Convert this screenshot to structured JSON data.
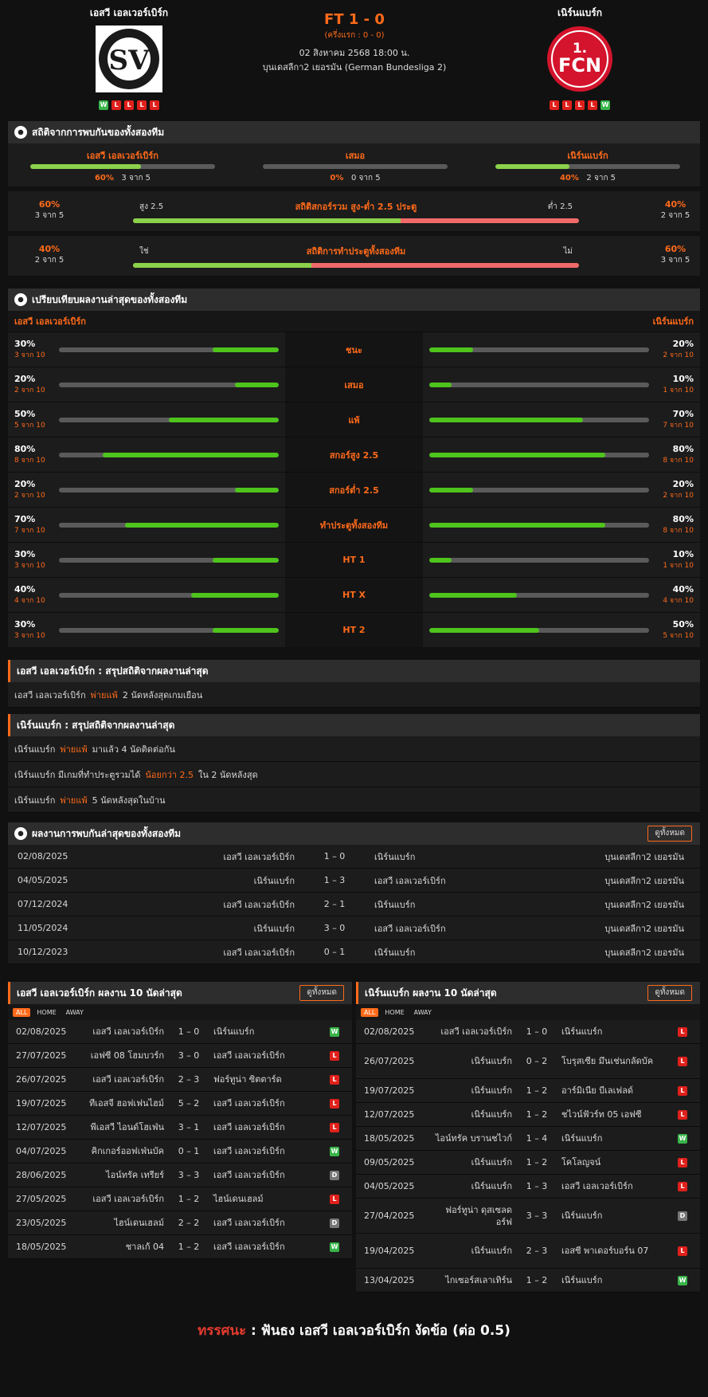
{
  "header": {
    "home_name": "เอสวี เอลเวอร์เบิร์ก",
    "away_name": "เนิร์นแบร์ก",
    "score": "FT 1 - 0",
    "half_time": "(ครึ่งแรก : 0 - 0)",
    "datetime": "02 สิงหาคม 2568 18:00 น.",
    "league": "บุนเดสลีกา2 เยอรมัน (German Bundesliga 2)",
    "home_form": [
      "W",
      "L",
      "L",
      "L",
      "L"
    ],
    "away_form": [
      "L",
      "L",
      "L",
      "L",
      "W"
    ],
    "home_logo_text": "SPORTVEREINIGUNG 07 E.V. ELVERSBERG",
    "away_logo_text": "1.FCN"
  },
  "h2h_stats": {
    "title": "สถิติจากการพบกันของทั้งสองทีม",
    "items": [
      {
        "label": "เอสวี เอลเวอร์เบิร์ก",
        "pct": "60%",
        "count": "3 จาก 5",
        "value": 60
      },
      {
        "label": "เสมอ",
        "pct": "0%",
        "count": "0 จาก 5",
        "value": 0
      },
      {
        "label": "เนิร์นแบร์ก",
        "pct": "40%",
        "count": "2 จาก 5",
        "value": 40
      }
    ],
    "ou": {
      "title": "สถิติสกอร์รวม สูง-ต่ำ 2.5 ประตู",
      "left_label": "สูง 2.5",
      "right_label": "ต่ำ 2.5",
      "left_pct": "60%",
      "left_count": "3 จาก 5",
      "right_pct": "40%",
      "right_count": "2 จาก 5",
      "value": 60
    },
    "btts": {
      "title": "สถิติการทำประตูทั้งสองทีม",
      "left_label": "ใช่",
      "right_label": "ไม่",
      "left_pct": "40%",
      "left_count": "2 จาก 5",
      "right_pct": "60%",
      "right_count": "3 จาก 5",
      "value": 40
    }
  },
  "comparison": {
    "title": "เปรียบเทียบผลงานล่าสุดของทั้งสองทีม",
    "home_label": "เอสวี เอลเวอร์เบิร์ก",
    "away_label": "เนิร์นแบร์ก",
    "rows": [
      {
        "label": "ชนะ",
        "home_pct": "30%",
        "home_count": "3 จาก 10",
        "home_value": 30,
        "away_pct": "20%",
        "away_count": "2 จาก 10",
        "away_value": 20
      },
      {
        "label": "เสมอ",
        "home_pct": "20%",
        "home_count": "2 จาก 10",
        "home_value": 20,
        "away_pct": "10%",
        "away_count": "1 จาก 10",
        "away_value": 10
      },
      {
        "label": "แพ้",
        "home_pct": "50%",
        "home_count": "5 จาก 10",
        "home_value": 50,
        "away_pct": "70%",
        "away_count": "7 จาก 10",
        "away_value": 70
      },
      {
        "label": "สกอร์สูง 2.5",
        "home_pct": "80%",
        "home_count": "8 จาก 10",
        "home_value": 80,
        "away_pct": "80%",
        "away_count": "8 จาก 10",
        "away_value": 80
      },
      {
        "label": "สกอร์ต่ำ 2.5",
        "home_pct": "20%",
        "home_count": "2 จาก 10",
        "home_value": 20,
        "away_pct": "20%",
        "away_count": "2 จาก 10",
        "away_value": 20
      },
      {
        "label": "ทำประตูทั้งสองทีม",
        "home_pct": "70%",
        "home_count": "7 จาก 10",
        "home_value": 70,
        "away_pct": "80%",
        "away_count": "8 จาก 10",
        "away_value": 80
      },
      {
        "label": "HT 1",
        "home_pct": "30%",
        "home_count": "3 จาก 10",
        "home_value": 30,
        "away_pct": "10%",
        "away_count": "1 จาก 10",
        "away_value": 10
      },
      {
        "label": "HT X",
        "home_pct": "40%",
        "home_count": "4 จาก 10",
        "home_value": 40,
        "away_pct": "40%",
        "away_count": "4 จาก 10",
        "away_value": 40
      },
      {
        "label": "HT 2",
        "home_pct": "30%",
        "home_count": "3 จาก 10",
        "home_value": 30,
        "away_pct": "50%",
        "away_count": "5 จาก 10",
        "away_value": 50
      }
    ]
  },
  "summary_home": {
    "title": "เอสวี เอลเวอร์เบิร์ก : สรุปสถิติจากผลงานล่าสุด",
    "rows": [
      {
        "pre": "เอสวี เอลเวอร์เบิร์ก",
        "hl": "พ่ายแพ้",
        "post": "2  นัดหลังสุดเกมเยือน"
      }
    ]
  },
  "summary_away": {
    "title": "เนิร์นแบร์ก : สรุปสถิติจากผลงานล่าสุด",
    "rows": [
      {
        "pre": "เนิร์นแบร์ก",
        "hl": "พ่ายแพ้",
        "post": "มาแล้ว 4 นัดติดต่อกัน"
      },
      {
        "pre": "เนิร์นแบร์ก  มีเกมที่ทำประตูรวมได้",
        "hl": "น้อยกว่า  2.5",
        "post": "ใน 2 นัดหลังสุด"
      },
      {
        "pre": "เนิร์นแบร์ก",
        "hl": "พ่ายแพ้",
        "post": "5  นัดหลังสุดในบ้าน"
      }
    ]
  },
  "h2h_results": {
    "title": "ผลงานการพบกันล่าสุดของทั้งสองทีม",
    "all_label": "ดูทั้งหมด",
    "rows": [
      {
        "date": "02/08/2025",
        "home": "เอสวี เอลเวอร์เบิร์ก",
        "score": "1 – 0",
        "away": "เนิร์นแบร์ก",
        "league": "บุนเดสลีกา2 เยอรมัน"
      },
      {
        "date": "04/05/2025",
        "home": "เนิร์นแบร์ก",
        "score": "1 – 3",
        "away": "เอสวี เอลเวอร์เบิร์ก",
        "league": "บุนเดสลีกา2 เยอรมัน"
      },
      {
        "date": "07/12/2024",
        "home": "เอสวี เอลเวอร์เบิร์ก",
        "score": "2 – 1",
        "away": "เนิร์นแบร์ก",
        "league": "บุนเดสลีกา2 เยอรมัน"
      },
      {
        "date": "11/05/2024",
        "home": "เนิร์นแบร์ก",
        "score": "3 – 0",
        "away": "เอสวี เอลเวอร์เบิร์ก",
        "league": "บุนเดสลีกา2 เยอรมัน"
      },
      {
        "date": "10/12/2023",
        "home": "เอสวี เอลเวอร์เบิร์ก",
        "score": "0 – 1",
        "away": "เนิร์นแบร์ก",
        "league": "บุนเดสลีกา2 เยอรมัน"
      }
    ]
  },
  "home_last10": {
    "title": "เอสวี เอลเวอร์เบิร์ก ผลงาน 10 นัดล่าสุด",
    "all_label": "ดูทั้งหมด",
    "filters": [
      "ALL",
      "HOME",
      "AWAY"
    ],
    "rows": [
      {
        "date": "02/08/2025",
        "home": "เอสวี เอลเวอร์เบิร์ก",
        "score": "1 – 0",
        "away": "เนิร์นแบร์ก",
        "res": "W"
      },
      {
        "date": "27/07/2025",
        "home": "เอฟซี 08 โฮมบวร์ก",
        "score": "3 – 0",
        "away": "เอสวี เอลเวอร์เบิร์ก",
        "res": "L"
      },
      {
        "date": "26/07/2025",
        "home": "เอสวี เอลเวอร์เบิร์ก",
        "score": "2 – 3",
        "away": "ฟอร์ทูน่า ซิตตาร์ด",
        "res": "L"
      },
      {
        "date": "19/07/2025",
        "home": "ทีเอสจี ฮอฟเฟนไฮม์",
        "score": "5 – 2",
        "away": "เอสวี เอลเวอร์เบิร์ก",
        "res": "L"
      },
      {
        "date": "12/07/2025",
        "home": "พีเอสวี ไอนด์โฮเฟ่น",
        "score": "3 – 1",
        "away": "เอสวี เอลเวอร์เบิร์ก",
        "res": "L"
      },
      {
        "date": "04/07/2025",
        "home": "คิกเกอร์ออฟเฟ่นบัค",
        "score": "0 – 1",
        "away": "เอสวี เอลเวอร์เบิร์ก",
        "res": "W"
      },
      {
        "date": "28/06/2025",
        "home": "ไอน์ทรัค เทรียร์",
        "score": "3 – 3",
        "away": "เอสวี เอลเวอร์เบิร์ก",
        "res": "D"
      },
      {
        "date": "27/05/2025",
        "home": "เอสวี เอลเวอร์เบิร์ก",
        "score": "1 – 2",
        "away": "ไฮน์เดนเฮลม์",
        "res": "L"
      },
      {
        "date": "23/05/2025",
        "home": "ไฮน์เดนเฮลม์",
        "score": "2 – 2",
        "away": "เอสวี เอลเวอร์เบิร์ก",
        "res": "D"
      },
      {
        "date": "18/05/2025",
        "home": "ชาลเก้ 04",
        "score": "1 – 2",
        "away": "เอสวี เอลเวอร์เบิร์ก",
        "res": "W"
      }
    ]
  },
  "away_last10": {
    "title": "เนิร์นแบร์ก ผลงาน 10 นัดล่าสุด",
    "all_label": "ดูทั้งหมด",
    "filters": [
      "ALL",
      "HOME",
      "AWAY"
    ],
    "rows": [
      {
        "date": "02/08/2025",
        "home": "เอสวี เอลเวอร์เบิร์ก",
        "score": "1 – 0",
        "away": "เนิร์นแบร์ก",
        "res": "L"
      },
      {
        "date": "26/07/2025",
        "home": "เนิร์นแบร์ก",
        "score": "0 – 2",
        "away": "โบรุสเซีย มึนเช่นกลัดบัค",
        "res": "L",
        "tall": true
      },
      {
        "date": "19/07/2025",
        "home": "เนิร์นแบร์ก",
        "score": "1 – 2",
        "away": "อาร์มิเนีย บีเลเฟลด์",
        "res": "L"
      },
      {
        "date": "12/07/2025",
        "home": "เนิร์นแบร์ก",
        "score": "1 – 2",
        "away": "ชไวน์ฟัวร์ท 05 เอฟซี",
        "res": "L"
      },
      {
        "date": "18/05/2025",
        "home": "ไอน์ทรัค บรานชไวก์",
        "score": "1 – 4",
        "away": "เนิร์นแบร์ก",
        "res": "W"
      },
      {
        "date": "09/05/2025",
        "home": "เนิร์นแบร์ก",
        "score": "1 – 2",
        "away": "โคโลญจน์",
        "res": "L"
      },
      {
        "date": "04/05/2025",
        "home": "เนิร์นแบร์ก",
        "score": "1 – 3",
        "away": "เอสวี เอลเวอร์เบิร์ก",
        "res": "L"
      },
      {
        "date": "27/04/2025",
        "home": "ฟอร์ทูน่า ดุสเซลดอร์ฟ",
        "score": "3 – 3",
        "away": "เนิร์นแบร์ก",
        "res": "D",
        "tall": true
      },
      {
        "date": "19/04/2025",
        "home": "เนิร์นแบร์ก",
        "score": "2 – 3",
        "away": "เอสซี พาเดอร์บอร์น 07",
        "res": "L",
        "tall": true
      },
      {
        "date": "13/04/2025",
        "home": "ไกเซอร์สเลาเทิร์น",
        "score": "1 – 2",
        "away": "เนิร์นแบร์ก",
        "res": "W"
      }
    ]
  },
  "verdict": {
    "label": "ทรรศนะ",
    "sep": ":",
    "text": "ฟันธง เอสวี เอลเวอร์เบิร์ก งัดข้อ (ต่อ 0.5)"
  }
}
